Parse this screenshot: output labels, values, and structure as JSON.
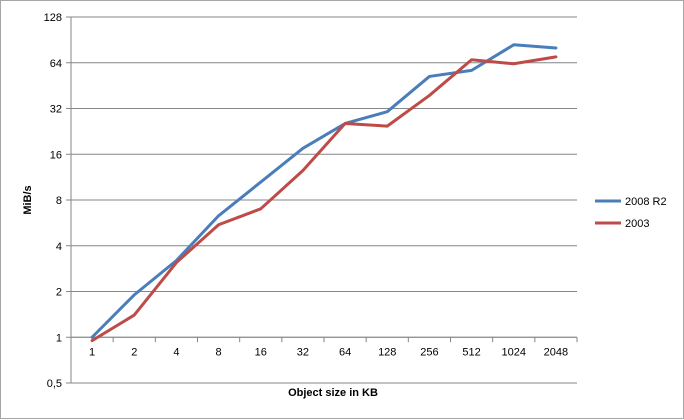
{
  "chart_data": {
    "type": "line",
    "title": "",
    "xlabel": "Object size in KB",
    "ylabel": "MiB/s",
    "y_scale": "log2",
    "ylim": [
      0.5,
      128
    ],
    "y_ticks": [
      "0,5",
      "1",
      "2",
      "4",
      "8",
      "16",
      "32",
      "64",
      "128"
    ],
    "y_tick_values": [
      0.5,
      1,
      2,
      4,
      8,
      16,
      32,
      64,
      128
    ],
    "categories": [
      "1",
      "2",
      "4",
      "8",
      "16",
      "32",
      "64",
      "128",
      "256",
      "512",
      "1024",
      "2048"
    ],
    "grid": "horizontal major gridlines",
    "legend_position": "right",
    "series": [
      {
        "name": "2008 R2",
        "color": "#4a7ebb",
        "values": [
          1.0,
          1.9,
          3.2,
          6.3,
          10.5,
          17.5,
          25.5,
          30.5,
          52,
          57,
          84,
          80
        ]
      },
      {
        "name": "2003",
        "color": "#be4b48",
        "values": [
          0.95,
          1.4,
          3.1,
          5.5,
          7.0,
          12.5,
          25.5,
          24.5,
          39,
          67,
          63,
          70
        ]
      }
    ]
  }
}
